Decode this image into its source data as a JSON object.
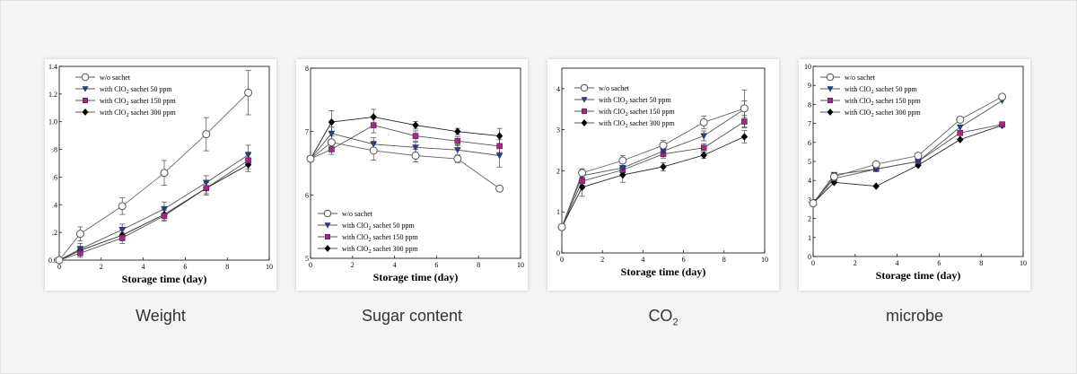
{
  "chart_data": [
    {
      "type": "line",
      "caption": "Weight",
      "xlabel": "Storage time (day)",
      "ylabel": "",
      "xlim": [
        0,
        10
      ],
      "ylim": [
        0,
        1.4
      ],
      "x_ticks": [
        0,
        2,
        4,
        6,
        8,
        10
      ],
      "y_ticks": [
        0,
        0.2,
        0.4,
        0.6,
        0.8,
        1.0,
        1.2,
        1.4
      ],
      "y_tick_labels": [
        "0.0",
        ".2",
        ".4",
        ".6",
        ".8",
        "1.0",
        "1.2",
        "1.4"
      ],
      "legend_position": "top-left",
      "x": [
        0,
        1,
        3,
        5,
        7,
        9
      ],
      "series": [
        {
          "name": "w/o sachet",
          "marker": "circle-open",
          "values": [
            0,
            0.19,
            0.39,
            0.63,
            0.91,
            1.21
          ],
          "errors": [
            0,
            0.05,
            0.06,
            0.09,
            0.12,
            0.16
          ]
        },
        {
          "name": "with ClO2 sachet 50 ppm",
          "marker": "triangle-down",
          "color": "#1f3f9f",
          "values": [
            0,
            0.08,
            0.22,
            0.37,
            0.56,
            0.76
          ],
          "errors": [
            0,
            0.04,
            0.04,
            0.05,
            0.05,
            0.07
          ]
        },
        {
          "name": "with ClO2 sachet 150 ppm",
          "marker": "square",
          "color": "#b0208f",
          "values": [
            0,
            0.05,
            0.16,
            0.32,
            0.52,
            0.72
          ],
          "errors": [
            0,
            0.03,
            0.04,
            0.04,
            0.05,
            0.06
          ]
        },
        {
          "name": "with ClO2 sachet 300 ppm",
          "marker": "diamond",
          "color": "#000000",
          "values": [
            0,
            0.07,
            0.18,
            0.33,
            0.52,
            0.69
          ],
          "errors": [
            0,
            0.03,
            0.04,
            0.04,
            0.04,
            0.05
          ]
        }
      ]
    },
    {
      "type": "line",
      "caption": "Sugar content",
      "xlabel": "Storage time (day)",
      "ylabel": "",
      "xlim": [
        0,
        10
      ],
      "ylim": [
        5,
        8
      ],
      "x_ticks": [
        0,
        2,
        4,
        6,
        8,
        10
      ],
      "y_ticks": [
        5,
        6,
        7,
        8
      ],
      "y_tick_labels": [
        "5",
        "6",
        "7",
        "8"
      ],
      "legend_position": "bottom-left",
      "x": [
        0,
        1,
        3,
        5,
        7,
        9
      ],
      "series": [
        {
          "name": "w/o sachet",
          "marker": "circle-open",
          "values": [
            6.57,
            6.83,
            6.7,
            6.62,
            6.57,
            6.1
          ],
          "errors": [
            0,
            0.1,
            0.15,
            0.1,
            0.06,
            0
          ]
        },
        {
          "name": "with ClO2 sachet 50 ppm",
          "marker": "triangle-down",
          "color": "#1f3f9f",
          "values": [
            6.57,
            6.97,
            6.8,
            6.75,
            6.71,
            6.62
          ],
          "errors": [
            0,
            0.1,
            0.1,
            0.08,
            0.08,
            0.18
          ]
        },
        {
          "name": "with ClO2 sachet 150 ppm",
          "marker": "square",
          "color": "#b0208f",
          "values": [
            6.57,
            6.72,
            7.1,
            6.93,
            6.85,
            6.77
          ],
          "errors": [
            0,
            0.08,
            0.12,
            0.08,
            0.07,
            0.1
          ]
        },
        {
          "name": "with ClO2 sachet 300 ppm",
          "marker": "diamond",
          "color": "#000000",
          "values": [
            6.57,
            7.15,
            7.23,
            7.1,
            7.0,
            6.93
          ],
          "errors": [
            0,
            0.18,
            0.12,
            0.06,
            0.05,
            0.12
          ]
        }
      ]
    },
    {
      "type": "line",
      "caption": "CO",
      "caption_sub": "2",
      "xlabel": "Storage time (day)",
      "ylabel": "",
      "xlim": [
        0,
        10
      ],
      "ylim": [
        0,
        4.5
      ],
      "x_ticks": [
        0,
        2,
        4,
        6,
        8,
        10
      ],
      "y_ticks": [
        0,
        1,
        2,
        3,
        4
      ],
      "y_tick_labels": [
        "0",
        "1",
        "2",
        "3",
        "4"
      ],
      "legend_position": "top-left",
      "x": [
        0,
        1,
        3,
        5,
        7,
        9
      ],
      "series": [
        {
          "name": "w/o sachet",
          "marker": "circle-open",
          "values": [
            0.63,
            1.95,
            2.25,
            2.62,
            3.18,
            3.52
          ],
          "errors": [
            0,
            0.1,
            0.12,
            0.12,
            0.15,
            0.45
          ]
        },
        {
          "name": "with ClO2 sachet 50 ppm",
          "marker": "triangle-down",
          "color": "#1f3f9f",
          "values": [
            0.63,
            1.88,
            2.07,
            2.48,
            2.85,
            3.5
          ],
          "errors": [
            0,
            0.1,
            0.12,
            0.1,
            0.12,
            0.2
          ]
        },
        {
          "name": "with ClO2 sachet 150 ppm",
          "marker": "square",
          "color": "#b0208f",
          "values": [
            0.63,
            1.75,
            2.02,
            2.41,
            2.56,
            3.2
          ],
          "errors": [
            0,
            0.1,
            0.1,
            0.1,
            0.1,
            0.15
          ]
        },
        {
          "name": "with ClO2 sachet 300 ppm",
          "marker": "diamond",
          "color": "#000000",
          "values": [
            0.63,
            1.6,
            1.9,
            2.1,
            2.38,
            2.83
          ],
          "errors": [
            0,
            0.22,
            0.18,
            0.1,
            0.08,
            0.15
          ]
        }
      ]
    },
    {
      "type": "line",
      "caption": "microbe",
      "xlabel": "Storage time (day)",
      "ylabel": "",
      "xlim": [
        0,
        10
      ],
      "ylim": [
        0,
        10
      ],
      "x_ticks": [
        0,
        2,
        4,
        6,
        8,
        10
      ],
      "y_ticks": [
        0,
        1,
        2,
        3,
        4,
        5,
        6,
        7,
        8,
        9,
        10
      ],
      "y_tick_labels": [
        "0",
        "1",
        "2",
        "3",
        "4",
        "5",
        "6",
        "7",
        "8",
        "9",
        "10"
      ],
      "legend_position": "top-left",
      "x": [
        0,
        1,
        3,
        5,
        7,
        9
      ],
      "series": [
        {
          "name": "w/o sachet",
          "marker": "circle-open",
          "values": [
            2.8,
            4.2,
            4.85,
            5.3,
            7.2,
            8.4
          ],
          "errors": [
            0,
            0,
            0,
            0,
            0,
            0
          ]
        },
        {
          "name": "with ClO2 sachet 50 ppm",
          "marker": "triangle-down",
          "color": "#1f3f9f",
          "values": [
            2.8,
            4.3,
            4.6,
            5.0,
            6.8,
            8.2
          ],
          "errors": [
            0,
            0,
            0,
            0,
            0,
            0
          ]
        },
        {
          "name": "with ClO2 sachet 150 ppm",
          "marker": "square",
          "color": "#b0208f",
          "values": [
            2.8,
            4.1,
            4.6,
            5.0,
            6.5,
            6.95
          ],
          "errors": [
            0,
            0,
            0,
            0,
            0,
            0
          ]
        },
        {
          "name": "with ClO2 sachet 300 ppm",
          "marker": "diamond",
          "color": "#000000",
          "values": [
            2.8,
            3.9,
            3.7,
            4.8,
            6.15,
            6.9
          ],
          "errors": [
            0,
            0,
            0,
            0,
            0,
            0
          ]
        }
      ]
    }
  ]
}
